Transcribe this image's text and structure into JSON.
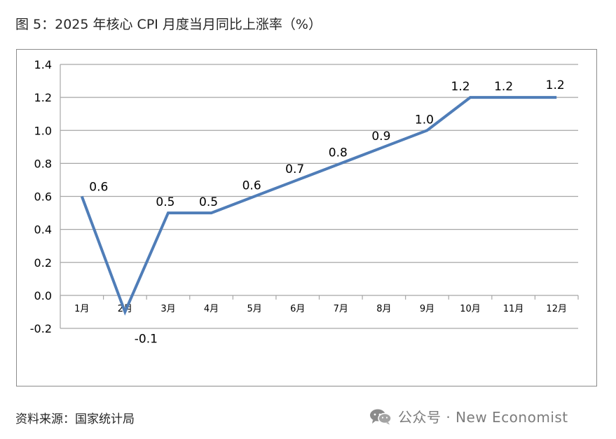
{
  "title": "图 5：2025 年核心 CPI 月度当月同比上涨率（%）",
  "source": "资料来源：国家统计局",
  "watermark": {
    "text": "公众号 · New Economist",
    "icon": "wechat-icon"
  },
  "colors": {
    "line": "#4f7db8",
    "grid": "#a6a6a6",
    "frame": "#8c8c8c",
    "text": "#000000"
  },
  "chart_data": {
    "type": "line",
    "categories": [
      "1月",
      "2月",
      "3月",
      "4月",
      "5月",
      "6月",
      "7月",
      "8月",
      "9月",
      "10月",
      "11月",
      "12月"
    ],
    "series": [
      {
        "values": [
          0.6,
          -0.1,
          0.5,
          0.5,
          0.6,
          0.7,
          0.8,
          0.9,
          1.0,
          1.2,
          1.2,
          1.2
        ],
        "labels": [
          "0.6",
          "-0.1",
          "0.5",
          "0.5",
          "0.6",
          "0.7",
          "0.8",
          "0.9",
          "1.0",
          "1.2",
          "1.2",
          "1.2"
        ]
      }
    ],
    "yticks": [
      "-0.2",
      "0.0",
      "0.2",
      "0.4",
      "0.6",
      "0.8",
      "1.0",
      "1.2",
      "1.4"
    ],
    "ytick_values": [
      -0.2,
      0.0,
      0.2,
      0.4,
      0.6,
      0.8,
      1.0,
      1.2,
      1.4
    ],
    "ylim": [
      -0.2,
      1.4
    ],
    "grid": true,
    "legend": "none"
  }
}
